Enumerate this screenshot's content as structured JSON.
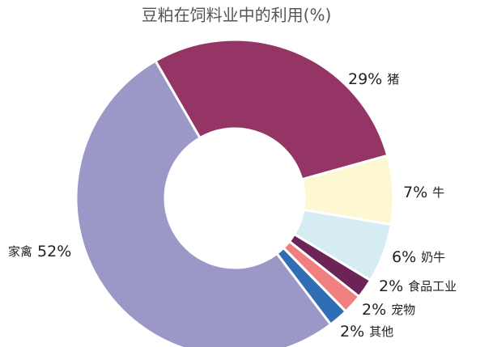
{
  "chart_data": {
    "type": "donut",
    "title": "豆粕在饲料业中的利用(%)",
    "categories": [
      "猪",
      "牛",
      "奶牛",
      "食品工业",
      "宠物",
      "其他",
      "家禽"
    ],
    "values": [
      29,
      7,
      6,
      2,
      2,
      2,
      52
    ],
    "value_labels": [
      "29%",
      "7%",
      "6%",
      "2%",
      "2%",
      "2%",
      "52%"
    ],
    "colors": [
      "#953566",
      "#fdf8d2",
      "#d6ecf3",
      "#6b2358",
      "#f08080",
      "#2f6db5",
      "#9b98c8"
    ]
  }
}
